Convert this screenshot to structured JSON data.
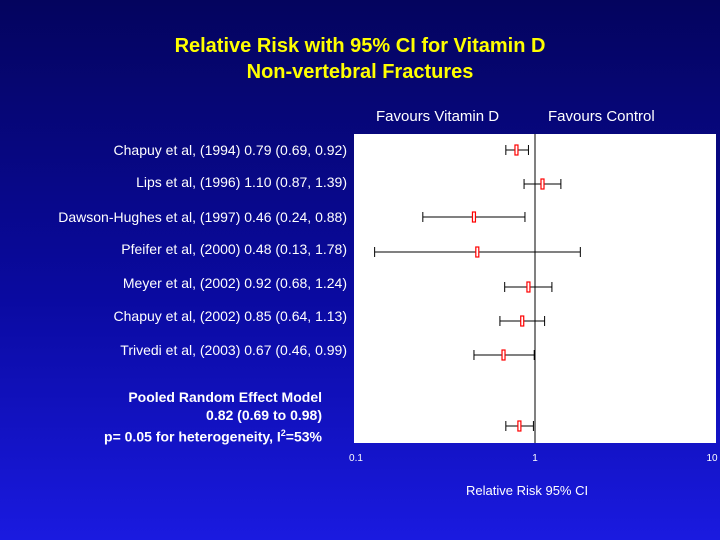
{
  "title_line1": "Relative Risk  with 95% CI for Vitamin D",
  "title_line2": "Non-vertebral Fractures",
  "favours_left": "Favours Vitamin D",
  "favours_right": "Favours Control",
  "pooled": {
    "line1": "Pooled Random Effect Model",
    "line2": "0.82 (0.69 to 0.98)",
    "line3_prefix": "p= 0.05 for heterogeneity, I",
    "line3_sup": "2",
    "line3_suffix": "=53%"
  },
  "chart_data": {
    "type": "forest",
    "title": "Relative Risk  with 95% CI for Vitamin D Non-vertebral Fractures",
    "xlabel": "Relative Risk 95% CI",
    "xscale": "log",
    "xlim": [
      0.1,
      10
    ],
    "xticks": [
      "0.1",
      "1",
      "10"
    ],
    "reference_line": 1,
    "studies": [
      {
        "label": "Chapuy et al, (1994) 0.79 (0.69, 0.92)",
        "rr": 0.79,
        "lo": 0.69,
        "hi": 0.92
      },
      {
        "label": "Lips et al, (1996) 1.10 (0.87, 1.39)",
        "rr": 1.1,
        "lo": 0.87,
        "hi": 1.39
      },
      {
        "label": "Dawson-Hughes et al, (1997) 0.46 (0.24, 0.88)",
        "rr": 0.46,
        "lo": 0.24,
        "hi": 0.88
      },
      {
        "label": "Pfeifer et al, (2000) 0.48 (0.13, 1.78)",
        "rr": 0.48,
        "lo": 0.13,
        "hi": 1.78
      },
      {
        "label": "Meyer et al, (2002) 0.92 (0.68, 1.24)",
        "rr": 0.92,
        "lo": 0.68,
        "hi": 1.24
      },
      {
        "label": "Chapuy et al, (2002) 0.85 (0.64, 1.13)",
        "rr": 0.85,
        "lo": 0.64,
        "hi": 1.13
      },
      {
        "label": "Trivedi et al, (2003) 0.67 (0.46, 0.99)",
        "rr": 0.67,
        "lo": 0.46,
        "hi": 0.99
      }
    ],
    "pooled": {
      "rr": 0.82,
      "lo": 0.69,
      "hi": 0.98
    },
    "colors": {
      "background": "#0a0aa0",
      "title": "#ffff00",
      "panel": "#ffffff",
      "marker": "#ff0000",
      "line": "#000000",
      "text": "#ffffff"
    }
  }
}
